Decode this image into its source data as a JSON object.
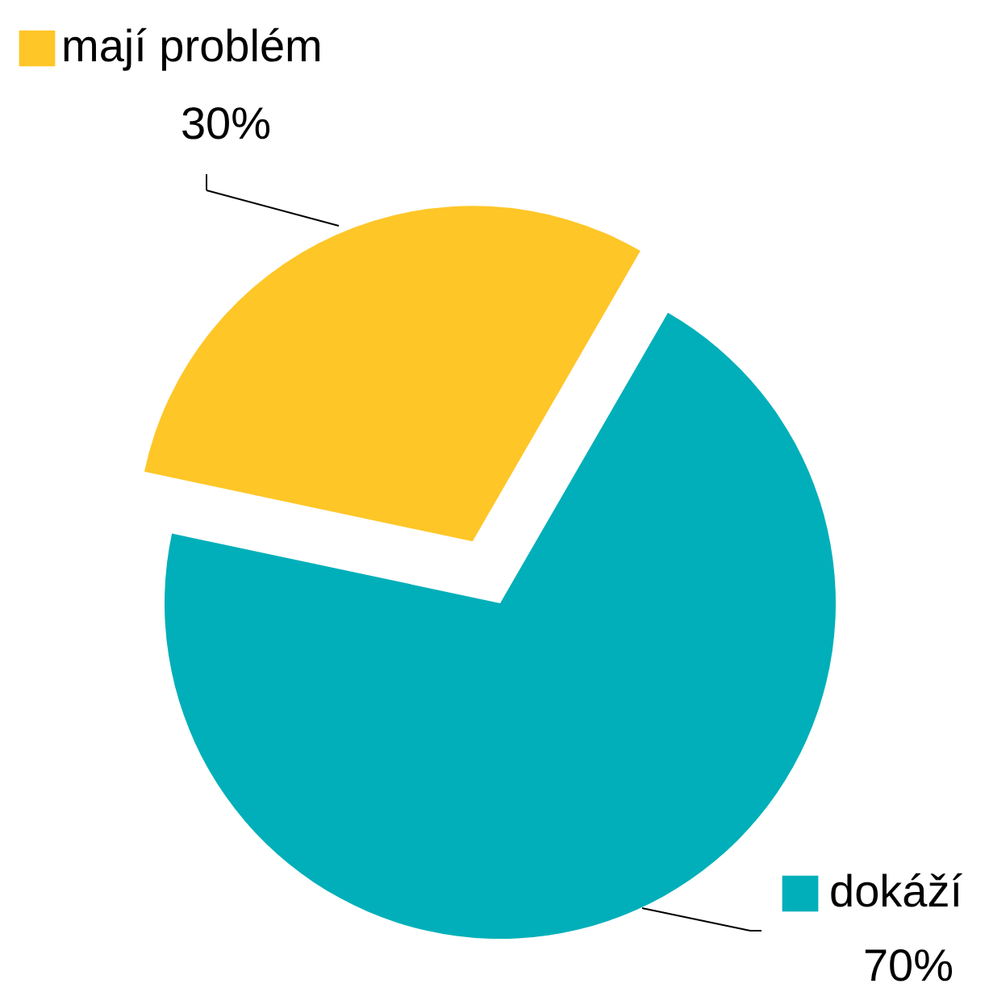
{
  "chart_data": {
    "type": "pie",
    "categories": [
      "mají problém",
      "dokáží"
    ],
    "values": [
      30,
      70
    ],
    "colors": [
      "#fec627",
      "#00afb9"
    ],
    "value_labels": [
      "30%",
      "70%"
    ],
    "legend": "top left"
  }
}
